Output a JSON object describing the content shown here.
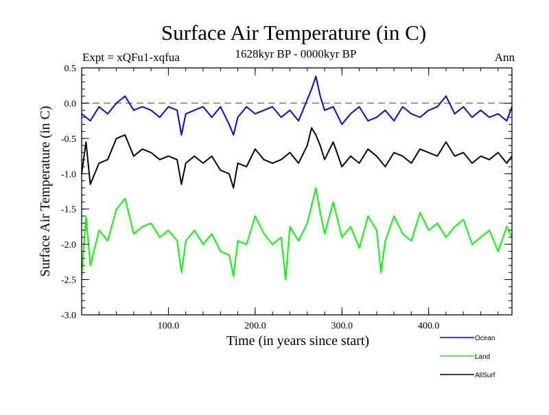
{
  "chart_data": {
    "type": "line",
    "title": "Surface Air Temperature (in C)",
    "subtitle": "1628kyr BP - 0000kyr BP",
    "experiment": "Expt = xQFu1-xqfua",
    "season": "Ann",
    "xlabel": "Time (in years since start)",
    "ylabel": "Surface Air Temperature (in C)",
    "xlim": [
      0,
      496
    ],
    "ylim": [
      -3.0,
      0.5
    ],
    "xticks": [
      100,
      200,
      300,
      400
    ],
    "xtick_labels": [
      "100.0",
      "200.0",
      "300.0",
      "400.0"
    ],
    "yticks": [
      0.5,
      0.0,
      -0.5,
      -1.0,
      -1.5,
      -2.0,
      -2.5,
      -3.0
    ],
    "ytick_labels": [
      "0.5",
      "0.0",
      "-0.5",
      "-1.0",
      "-1.5",
      "-2.0",
      "-2.5",
      "-3.0"
    ],
    "reference_line": 0.0,
    "series": [
      {
        "name": "Ocean",
        "color": "#0000ff",
        "x": [
          0,
          10,
          20,
          30,
          40,
          50,
          60,
          70,
          80,
          90,
          100,
          110,
          115,
          120,
          130,
          140,
          150,
          160,
          170,
          175,
          180,
          190,
          200,
          210,
          220,
          230,
          240,
          250,
          260,
          265,
          270,
          275,
          280,
          290,
          300,
          310,
          320,
          330,
          340,
          350,
          360,
          370,
          380,
          390,
          400,
          410,
          420,
          430,
          440,
          450,
          460,
          470,
          480,
          490,
          496
        ],
        "values": [
          -0.15,
          -0.25,
          -0.05,
          -0.15,
          0.0,
          0.1,
          -0.1,
          -0.05,
          -0.1,
          -0.2,
          -0.05,
          -0.1,
          -0.45,
          -0.15,
          -0.1,
          -0.05,
          -0.2,
          -0.05,
          -0.3,
          -0.45,
          -0.2,
          -0.05,
          -0.15,
          -0.1,
          -0.05,
          -0.2,
          -0.1,
          -0.25,
          0.05,
          0.2,
          0.38,
          0.1,
          -0.1,
          -0.05,
          -0.3,
          -0.15,
          -0.05,
          -0.25,
          -0.2,
          -0.1,
          -0.25,
          -0.05,
          -0.15,
          -0.2,
          -0.1,
          -0.05,
          0.1,
          -0.15,
          -0.05,
          -0.2,
          -0.1,
          -0.2,
          -0.15,
          -0.25,
          -0.05
        ]
      },
      {
        "name": "Land",
        "color": "#00ff00",
        "x": [
          0,
          5,
          10,
          20,
          30,
          40,
          50,
          60,
          70,
          80,
          90,
          100,
          110,
          115,
          120,
          130,
          140,
          150,
          160,
          170,
          175,
          180,
          190,
          200,
          210,
          220,
          230,
          235,
          240,
          250,
          260,
          265,
          270,
          275,
          280,
          290,
          300,
          310,
          320,
          330,
          340,
          345,
          350,
          360,
          370,
          380,
          390,
          400,
          410,
          420,
          430,
          440,
          450,
          460,
          470,
          480,
          490,
          496
        ],
        "values": [
          -2.45,
          -1.6,
          -2.3,
          -1.8,
          -1.95,
          -1.5,
          -1.35,
          -1.85,
          -1.75,
          -1.7,
          -1.9,
          -1.8,
          -1.95,
          -2.4,
          -1.95,
          -1.8,
          -2.0,
          -1.85,
          -2.1,
          -2.15,
          -2.45,
          -1.95,
          -2.0,
          -1.6,
          -1.85,
          -2.0,
          -1.9,
          -2.5,
          -1.75,
          -1.95,
          -1.7,
          -1.45,
          -1.2,
          -1.55,
          -1.85,
          -1.4,
          -1.9,
          -1.75,
          -2.05,
          -1.6,
          -1.8,
          -2.4,
          -1.95,
          -1.6,
          -1.85,
          -1.95,
          -1.55,
          -1.8,
          -1.7,
          -1.9,
          -1.75,
          -1.65,
          -2.0,
          -1.9,
          -1.8,
          -2.1,
          -1.75,
          -1.9
        ]
      },
      {
        "name": "AllSurf",
        "color": "#000000",
        "x": [
          0,
          5,
          10,
          20,
          30,
          40,
          50,
          60,
          70,
          80,
          90,
          100,
          110,
          115,
          120,
          130,
          140,
          150,
          160,
          170,
          175,
          180,
          190,
          200,
          210,
          220,
          230,
          240,
          250,
          260,
          265,
          270,
          275,
          280,
          290,
          300,
          310,
          320,
          330,
          340,
          350,
          360,
          370,
          380,
          390,
          400,
          410,
          420,
          430,
          440,
          450,
          460,
          470,
          480,
          490,
          496
        ],
        "values": [
          -1.0,
          -0.55,
          -1.15,
          -0.85,
          -0.8,
          -0.5,
          -0.45,
          -0.75,
          -0.65,
          -0.7,
          -0.8,
          -0.75,
          -0.8,
          -1.15,
          -0.85,
          -0.75,
          -0.85,
          -0.75,
          -0.95,
          -1.0,
          -1.2,
          -0.85,
          -0.9,
          -0.65,
          -0.8,
          -0.85,
          -0.8,
          -0.7,
          -0.85,
          -0.6,
          -0.35,
          -0.45,
          -0.6,
          -0.8,
          -0.55,
          -0.9,
          -0.75,
          -0.85,
          -0.65,
          -0.75,
          -0.9,
          -0.7,
          -0.75,
          -0.85,
          -0.65,
          -0.7,
          -0.75,
          -0.55,
          -0.75,
          -0.7,
          -0.85,
          -0.75,
          -0.8,
          -0.7,
          -0.85,
          -0.75
        ]
      }
    ]
  }
}
